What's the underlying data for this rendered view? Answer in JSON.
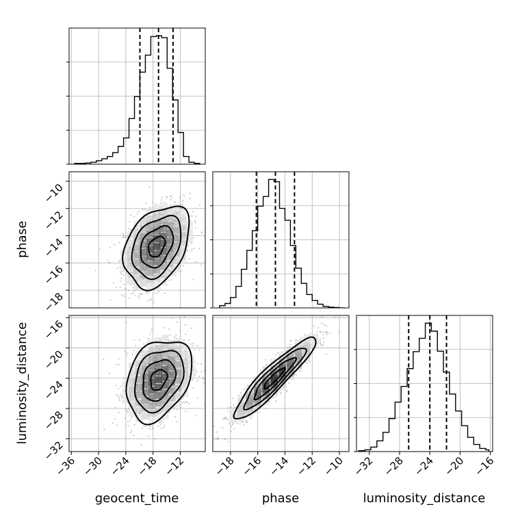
{
  "chart_data": {
    "type": "corner",
    "parameters": [
      "geocent_time",
      "phase",
      "luminosity_distance"
    ],
    "axis_labels": {
      "geocent_time": "geocent_time",
      "phase": "phase",
      "luminosity_distance": "luminosity_distance"
    },
    "ranges": {
      "geocent_time": [
        -36.5,
        -6.5
      ],
      "phase": [
        -19.3,
        -9.3
      ],
      "luminosity_distance": [
        -33.7,
        -15.7
      ]
    },
    "ticks": {
      "geocent_time": [
        -36,
        -30,
        -24,
        -18,
        -12
      ],
      "phase": [
        -18,
        -16,
        -14,
        -12,
        -10
      ],
      "luminosity_distance": [
        -32,
        -28,
        -24,
        -20,
        -16
      ]
    },
    "tick_labels": {
      "geocent_time": [
        "−36",
        "−30",
        "−24",
        "−18",
        "−12"
      ],
      "phase": [
        "−18",
        "−16",
        "−14",
        "−12",
        "−10"
      ],
      "luminosity_distance": [
        "−32",
        "−28",
        "−24",
        "−20",
        "−16"
      ]
    },
    "grid": true,
    "histograms": {
      "geocent_time": {
        "bin_edges": [
          -35.3,
          -34.1,
          -32.9,
          -31.7,
          -30.5,
          -29.3,
          -28.1,
          -26.9,
          -25.7,
          -24.5,
          -23.3,
          -22.1,
          -20.9,
          -19.7,
          -18.5,
          -17.3,
          -16.1,
          -14.9,
          -13.7,
          -12.5,
          -11.3,
          -10.1,
          -8.9,
          -7.7
        ],
        "counts": [
          2,
          2,
          3,
          5,
          9,
          14,
          20,
          30,
          46,
          68,
          118,
          175,
          238,
          282,
          330,
          332,
          327,
          248,
          166,
          82,
          20,
          5,
          2
        ]
      },
      "phase": {
        "bin_edges": [
          -18.8,
          -18.4,
          -18.0,
          -17.6,
          -17.2,
          -16.8,
          -16.4,
          -16.0,
          -15.6,
          -15.2,
          -14.8,
          -14.4,
          -14.0,
          -13.6,
          -13.2,
          -12.8,
          -12.4,
          -12.0,
          -11.6,
          -11.2,
          -10.8,
          -10.4,
          -10.0,
          -9.6
        ],
        "counts": [
          6,
          12,
          28,
          58,
          104,
          155,
          208,
          274,
          300,
          346,
          340,
          268,
          236,
          168,
          107,
          66,
          36,
          20,
          10,
          4,
          2,
          1,
          0
        ]
      },
      "luminosity_distance": {
        "bin_edges": [
          -33.4,
          -32.6,
          -31.8,
          -31.0,
          -30.2,
          -29.4,
          -28.6,
          -27.8,
          -27.0,
          -26.2,
          -25.4,
          -24.6,
          -23.8,
          -23.0,
          -22.2,
          -21.4,
          -20.6,
          -19.8,
          -19.0,
          -18.2,
          -17.4,
          -16.6,
          -16.2
        ],
        "counts": [
          2,
          4,
          10,
          24,
          43,
          74,
          111,
          146,
          186,
          224,
          254,
          288,
          270,
          225,
          178,
          129,
          91,
          58,
          32,
          16,
          7,
          4
        ]
      }
    },
    "quantiles": {
      "geocent_time": [
        -20.9,
        -16.8,
        -13.6
      ],
      "phase": [
        -16.1,
        -14.7,
        -13.3
      ],
      "luminosity_distance": [
        -26.8,
        -24.0,
        -21.8
      ]
    },
    "pairs": [
      {
        "x": "geocent_time",
        "y": "phase",
        "center": [
          -17.2,
          -14.8
        ],
        "std": [
          3.6,
          1.5
        ],
        "correlation": 0.35,
        "contour_levels_sigma": [
          0.5,
          1.0,
          1.5,
          2.0
        ]
      },
      {
        "x": "geocent_time",
        "y": "luminosity_distance",
        "center": [
          -16.8,
          -24.2
        ],
        "std": [
          3.6,
          2.7
        ],
        "correlation": 0.3,
        "contour_levels_sigma": [
          0.5,
          1.0,
          1.5,
          2.0
        ]
      },
      {
        "x": "phase",
        "y": "luminosity_distance",
        "center": [
          -14.8,
          -24.0
        ],
        "std": [
          1.5,
          2.7
        ],
        "correlation": 0.92,
        "contour_levels_sigma": [
          0.5,
          1.0,
          1.5,
          2.0
        ]
      }
    ]
  }
}
